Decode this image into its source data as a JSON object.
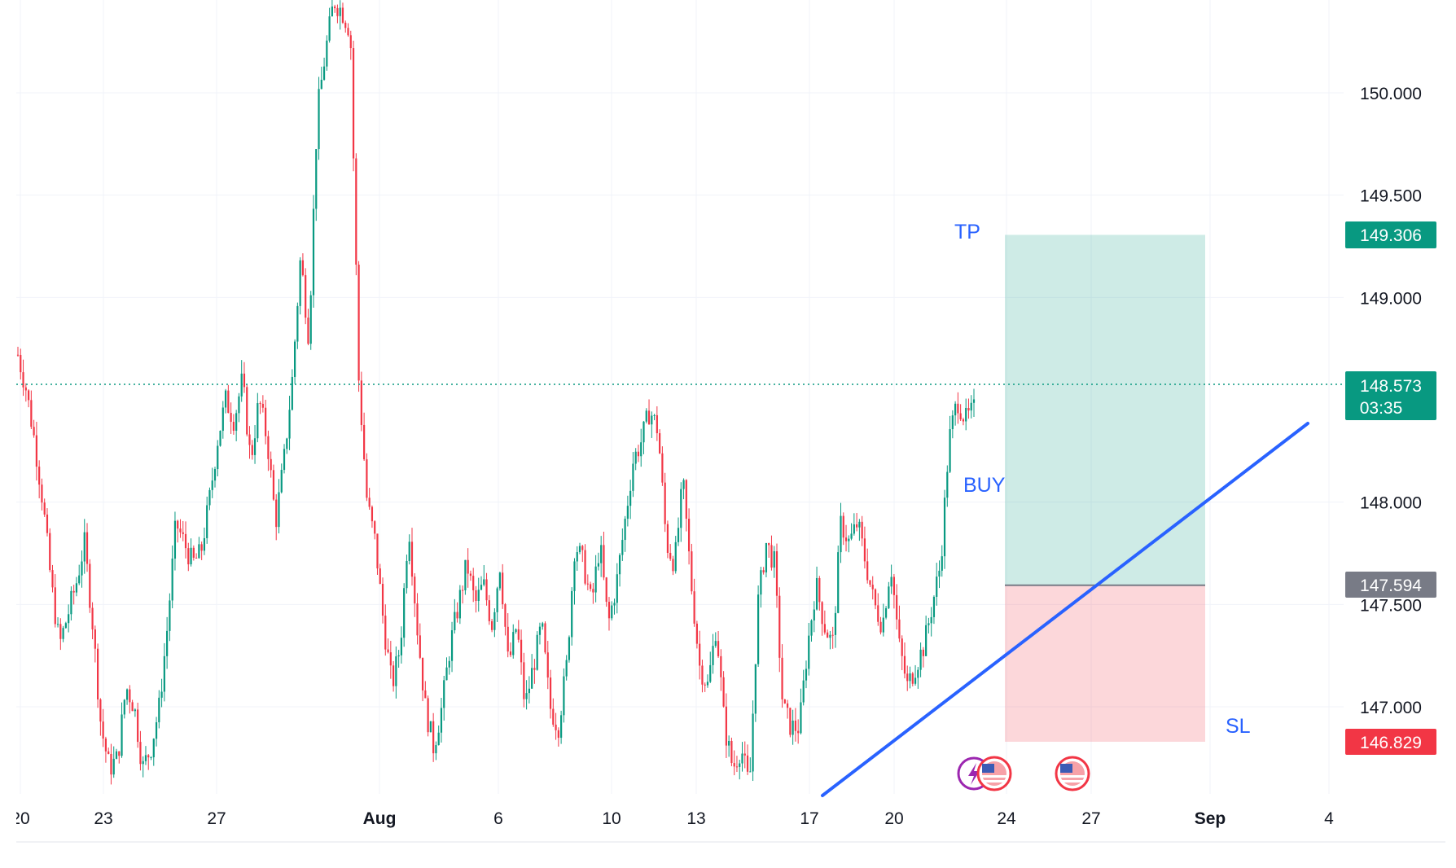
{
  "chart_data": {
    "type": "candlestick",
    "instrument_prices": {
      "current_price": "148.573",
      "countdown": "03:35",
      "take_profit": "149.306",
      "entry": "147.594",
      "stop_loss": "146.829"
    },
    "annotations": {
      "tp": "TP",
      "buy": "BUY",
      "sl": "SL"
    },
    "y_axis": {
      "range": [
        146.6,
        150.4
      ],
      "ticks": [
        {
          "value": 150.0,
          "label": "150.000"
        },
        {
          "value": 149.5,
          "label": "149.500"
        },
        {
          "value": 149.0,
          "label": "149.000"
        },
        {
          "value": 148.0,
          "label": "148.000"
        },
        {
          "value": 147.5,
          "label": "147.500"
        },
        {
          "value": 147.0,
          "label": "147.000"
        }
      ]
    },
    "x_axis": {
      "ticks": [
        {
          "label": "20",
          "bold": false
        },
        {
          "label": "23",
          "bold": false
        },
        {
          "label": "27",
          "bold": false
        },
        {
          "label": "Aug",
          "bold": true
        },
        {
          "label": "6",
          "bold": false
        },
        {
          "label": "10",
          "bold": false
        },
        {
          "label": "13",
          "bold": false
        },
        {
          "label": "17",
          "bold": false
        },
        {
          "label": "20",
          "bold": false
        },
        {
          "label": "24",
          "bold": false
        },
        {
          "label": "27",
          "bold": false
        },
        {
          "label": "Sep",
          "bold": true
        },
        {
          "label": "4",
          "bold": false
        }
      ]
    },
    "price_path": [
      148.72,
      148.55,
      148.3,
      148.0,
      147.6,
      147.3,
      147.45,
      147.6,
      147.8,
      147.4,
      146.9,
      146.7,
      146.75,
      147.1,
      147.0,
      146.7,
      146.8,
      147.0,
      147.4,
      147.9,
      147.8,
      147.7,
      147.75,
      148.0,
      148.3,
      148.5,
      148.4,
      148.6,
      148.2,
      148.5,
      148.3,
      147.9,
      148.2,
      148.6,
      149.2,
      148.8,
      149.9,
      150.2,
      150.45,
      150.4,
      150.3,
      148.6,
      148.0,
      147.8,
      147.4,
      147.1,
      147.3,
      147.9,
      147.4,
      147.0,
      146.8,
      147.0,
      147.3,
      147.5,
      147.7,
      147.5,
      147.6,
      147.4,
      147.7,
      147.2,
      147.4,
      147.0,
      147.2,
      147.4,
      147.0,
      146.9,
      147.2,
      147.8,
      147.7,
      147.5,
      147.8,
      147.4,
      147.6,
      147.9,
      148.2,
      148.3,
      148.45,
      148.35,
      147.8,
      147.7,
      148.1,
      147.6,
      147.2,
      147.1,
      147.4,
      146.9,
      146.7,
      146.8,
      146.6,
      147.5,
      147.8,
      147.7,
      147.0,
      146.9,
      146.9,
      147.3,
      147.6,
      147.4,
      147.3,
      147.9,
      147.8,
      147.9,
      147.7,
      147.5,
      147.4,
      147.7,
      147.3,
      147.1,
      147.2,
      147.3,
      147.5,
      147.7,
      148.3,
      148.5,
      148.4,
      148.45
    ]
  }
}
